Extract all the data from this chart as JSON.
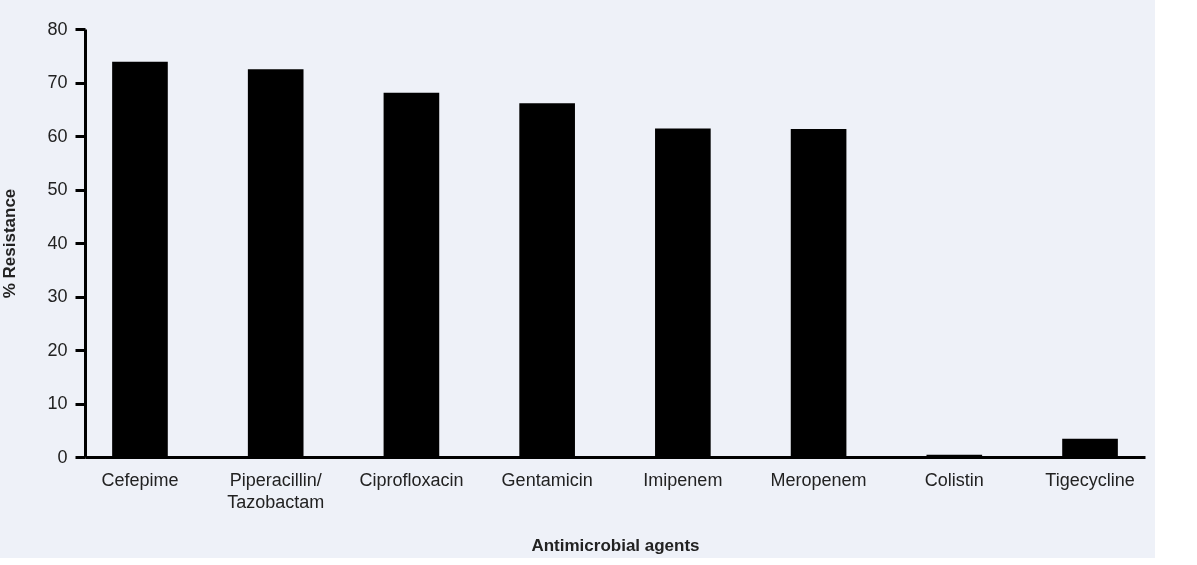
{
  "chart_data": {
    "type": "bar",
    "xlabel": "Antimicrobial agents",
    "ylabel": "% Resistance",
    "categories": [
      "Cefepime",
      "Piperacillin/\nTazobactam",
      "Ciprofloxacin",
      "Gentamicin",
      "Imipenem",
      "Meropenem",
      "Colistin",
      "Tigecycline"
    ],
    "values": [
      73.9,
      72.5,
      68.1,
      66.1,
      61.4,
      61.3,
      0.4,
      3.4
    ],
    "color": "#000000",
    "ylim": [
      0,
      80
    ],
    "yticks": [
      0,
      10,
      20,
      30,
      40,
      50,
      60,
      70,
      80
    ],
    "grid": false
  }
}
